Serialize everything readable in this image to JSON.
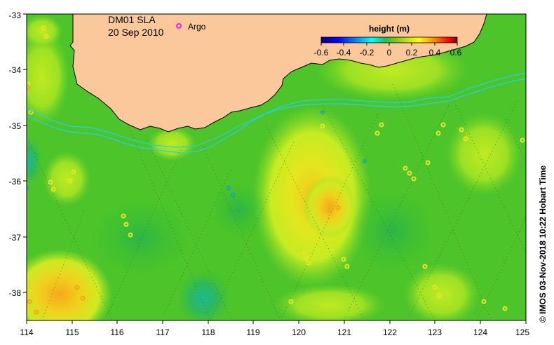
{
  "map": {
    "title": "DM01 SLA",
    "date": "20 Sep 2010",
    "argo_label": "Argo",
    "credit": "© IMOS 03-Nov-2018 10:22 Hobart Time",
    "land_color": "#fbc89c",
    "sea_base_color": "#4fc528",
    "isobath_color": "#22d2e6",
    "argo_marker_color": "#ee22ee"
  },
  "axes": {
    "x_ticks": [
      "114",
      "115",
      "116",
      "117",
      "118",
      "119",
      "120",
      "121",
      "122",
      "123",
      "124",
      "125"
    ],
    "y_ticks": [
      "-33",
      "-34",
      "-35",
      "-36",
      "-37",
      "-38"
    ],
    "lon_range": [
      114,
      125
    ],
    "lat_range": [
      -38.5,
      -33
    ]
  },
  "colorbar": {
    "title": "height (m)",
    "tick_labels": [
      "-0.6",
      "-0.4",
      "-0.2",
      "0",
      "0.2",
      "0.4",
      "0.6"
    ],
    "range": [
      -0.6,
      0.6
    ],
    "colors": [
      "#00008f",
      "#0000ff",
      "#0080ff",
      "#00ffff",
      "#00c060",
      "#40c020",
      "#b0e020",
      "#ffff00",
      "#ff8000",
      "#ff0000",
      "#800000"
    ]
  }
}
